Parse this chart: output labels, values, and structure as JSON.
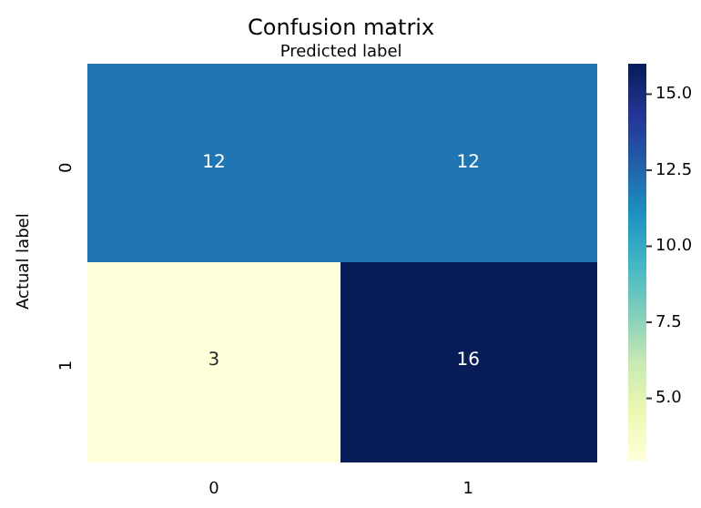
{
  "chart_data": {
    "type": "heatmap",
    "title": "Confusion matrix",
    "xlabel": "Predicted label",
    "ylabel": "Actual label",
    "categories": [
      "0",
      "1"
    ],
    "y_categories": [
      "0",
      "1"
    ],
    "cells": [
      [
        12,
        12
      ],
      [
        3,
        16
      ]
    ],
    "clim": [
      3,
      16
    ],
    "cticks": [
      {
        "value": 5,
        "label": "5.0"
      },
      {
        "value": 7.5,
        "label": "7.5"
      },
      {
        "value": 10,
        "label": "10.0"
      },
      {
        "value": 12.5,
        "label": "12.5"
      },
      {
        "value": 15,
        "label": "15.0"
      }
    ],
    "data_labels": true,
    "grid": false
  }
}
